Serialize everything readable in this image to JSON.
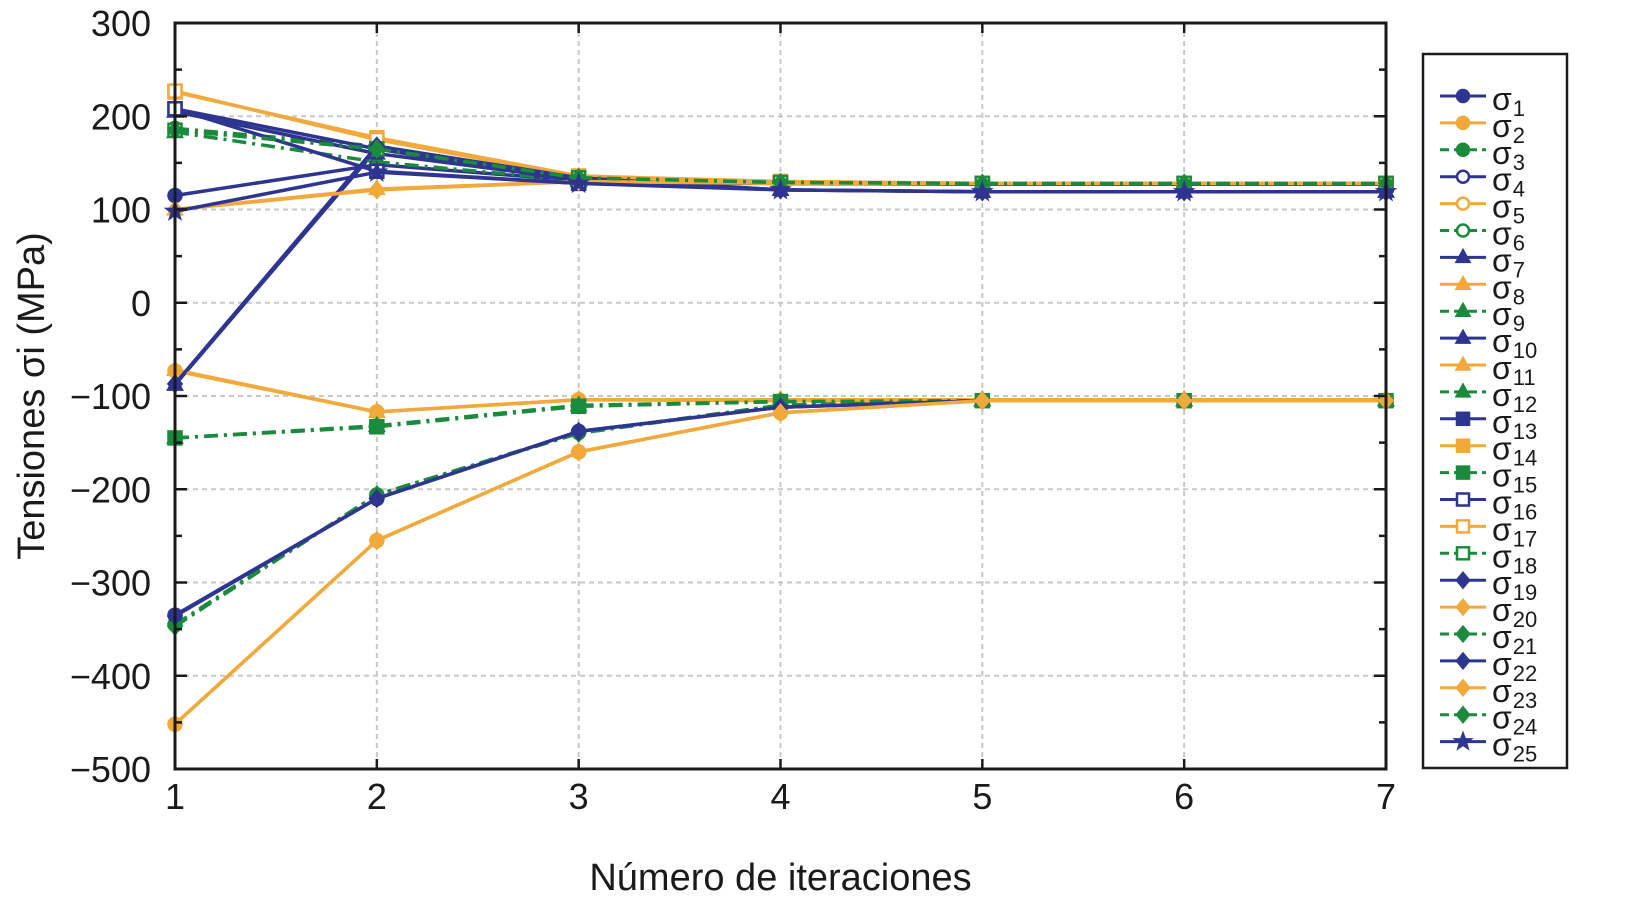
{
  "colors": {
    "blue": "#2e3591",
    "orange": "#f2a93b",
    "green": "#1a8a3c",
    "grid": "#c8c8c8",
    "axis": "#1a1a1a"
  },
  "chart_data": {
    "type": "line",
    "title": "",
    "xlabel": "Número de iteraciones",
    "ylabel": "Tensiones σi (MPa)",
    "xlim": [
      1,
      7
    ],
    "ylim": [
      -500,
      300
    ],
    "xticks": [
      "1",
      "2",
      "3",
      "4",
      "5",
      "6",
      "7"
    ],
    "yticks": [
      "300",
      "200",
      "100",
      "0",
      "−100",
      "−200",
      "−300",
      "−400",
      "−500"
    ],
    "grid": true,
    "legend_position": "right-outside",
    "x": [
      1,
      2,
      3,
      4,
      5,
      6,
      7
    ],
    "series": [
      {
        "label_base": "σ",
        "label_sub": "1",
        "color": "blue",
        "dash": "solid",
        "marker": "circle",
        "fill": true,
        "values": [
          115,
          148,
          131,
          128,
          127,
          127,
          127
        ]
      },
      {
        "label_base": "σ",
        "label_sub": "2",
        "color": "orange",
        "dash": "solid",
        "marker": "circle",
        "fill": true,
        "values": [
          -73,
          -117,
          -104,
          -105,
          -105,
          -105,
          -105
        ]
      },
      {
        "label_base": "σ",
        "label_sub": "3",
        "color": "green",
        "dash": "dashdot",
        "marker": "circle",
        "fill": true,
        "values": [
          -345,
          -206,
          -139,
          -110,
          -105,
          -105,
          -105
        ]
      },
      {
        "label_base": "σ",
        "label_sub": "4",
        "color": "blue",
        "dash": "solid",
        "marker": "circle",
        "fill": false,
        "values": [
          -335,
          -210,
          -138,
          -112,
          -105,
          -105,
          -105
        ]
      },
      {
        "label_base": "σ",
        "label_sub": "5",
        "color": "orange",
        "dash": "solid",
        "marker": "circle",
        "fill": false,
        "values": [
          -452,
          -255,
          -160,
          -118,
          -105,
          -105,
          -105
        ]
      },
      {
        "label_base": "σ",
        "label_sub": "6",
        "color": "green",
        "dash": "dashdot",
        "marker": "circle",
        "fill": false,
        "values": [
          187,
          168,
          133,
          129,
          128,
          128,
          128
        ]
      },
      {
        "label_base": "σ",
        "label_sub": "7",
        "color": "blue",
        "dash": "solid",
        "marker": "triangle",
        "fill": true,
        "values": [
          -88,
          165,
          133,
          121,
          119,
          119,
          119
        ]
      },
      {
        "label_base": "σ",
        "label_sub": "8",
        "color": "orange",
        "dash": "solid",
        "marker": "triangle",
        "fill": true,
        "values": [
          100,
          122,
          130,
          128,
          128,
          128,
          128
        ]
      },
      {
        "label_base": "σ",
        "label_sub": "9",
        "color": "green",
        "dash": "dashdot",
        "marker": "triangle",
        "fill": true,
        "values": [
          183,
          151,
          131,
          128,
          128,
          128,
          128
        ]
      },
      {
        "label_base": "σ",
        "label_sub": "10",
        "color": "blue",
        "dash": "solid",
        "marker": "triangle",
        "fill": true,
        "values": [
          205,
          160,
          132,
          128,
          128,
          128,
          128
        ]
      },
      {
        "label_base": "σ",
        "label_sub": "11",
        "color": "orange",
        "dash": "solid",
        "marker": "triangle",
        "fill": true,
        "values": [
          -72,
          -117,
          -104,
          -104,
          -104,
          -104,
          -104
        ]
      },
      {
        "label_base": "σ",
        "label_sub": "12",
        "color": "green",
        "dash": "dashdot",
        "marker": "triangle",
        "fill": true,
        "values": [
          -145,
          -132,
          -110,
          -106,
          -105,
          -105,
          -105
        ]
      },
      {
        "label_base": "σ",
        "label_sub": "13",
        "color": "blue",
        "dash": "solid",
        "marker": "square",
        "fill": true,
        "values": [
          208,
          165,
          130,
          128,
          128,
          128,
          128
        ]
      },
      {
        "label_base": "σ",
        "label_sub": "14",
        "color": "orange",
        "dash": "solid",
        "marker": "square",
        "fill": true,
        "values": [
          226,
          177,
          136,
          130,
          128,
          128,
          128
        ]
      },
      {
        "label_base": "σ",
        "label_sub": "15",
        "color": "green",
        "dash": "dashdot",
        "marker": "square",
        "fill": true,
        "values": [
          -145,
          -133,
          -111,
          -106,
          -105,
          -105,
          -105
        ]
      },
      {
        "label_base": "σ",
        "label_sub": "16",
        "color": "blue",
        "dash": "solid",
        "marker": "square",
        "fill": false,
        "values": [
          208,
          141,
          128,
          128,
          128,
          128,
          128
        ]
      },
      {
        "label_base": "σ",
        "label_sub": "17",
        "color": "orange",
        "dash": "solid",
        "marker": "square",
        "fill": false,
        "values": [
          227,
          175,
          135,
          130,
          128,
          128,
          128
        ]
      },
      {
        "label_base": "σ",
        "label_sub": "18",
        "color": "green",
        "dash": "dashdot",
        "marker": "square",
        "fill": false,
        "values": [
          185,
          165,
          134,
          129,
          128,
          128,
          128
        ]
      },
      {
        "label_base": "σ",
        "label_sub": "19",
        "color": "blue",
        "dash": "solid",
        "marker": "diamond",
        "fill": true,
        "values": [
          -87,
          168,
          134,
          121,
          119,
          119,
          119
        ]
      },
      {
        "label_base": "σ",
        "label_sub": "20",
        "color": "orange",
        "dash": "solid",
        "marker": "diamond",
        "fill": true,
        "values": [
          100,
          121,
          130,
          128,
          128,
          128,
          128
        ]
      },
      {
        "label_base": "σ",
        "label_sub": "21",
        "color": "green",
        "dash": "dashdot",
        "marker": "diamond",
        "fill": true,
        "values": [
          -347,
          -206,
          -140,
          -110,
          -105,
          -105,
          -105
        ]
      },
      {
        "label_base": "σ",
        "label_sub": "22",
        "color": "blue",
        "dash": "solid",
        "marker": "diamond",
        "fill": true,
        "values": [
          -336,
          -210,
          -138,
          -112,
          -105,
          -105,
          -105
        ]
      },
      {
        "label_base": "σ",
        "label_sub": "23",
        "color": "orange",
        "dash": "solid",
        "marker": "diamond",
        "fill": true,
        "values": [
          -452,
          -255,
          -160,
          -118,
          -105,
          -105,
          -105
        ]
      },
      {
        "label_base": "σ",
        "label_sub": "24",
        "color": "green",
        "dash": "dashdot",
        "marker": "diamond",
        "fill": true,
        "values": [
          185,
          165,
          134,
          129,
          128,
          128,
          128
        ]
      },
      {
        "label_base": "σ",
        "label_sub": "25",
        "color": "blue",
        "dash": "solid",
        "marker": "star",
        "fill": true,
        "values": [
          98,
          140,
          128,
          121,
          119,
          119,
          119
        ]
      }
    ]
  }
}
